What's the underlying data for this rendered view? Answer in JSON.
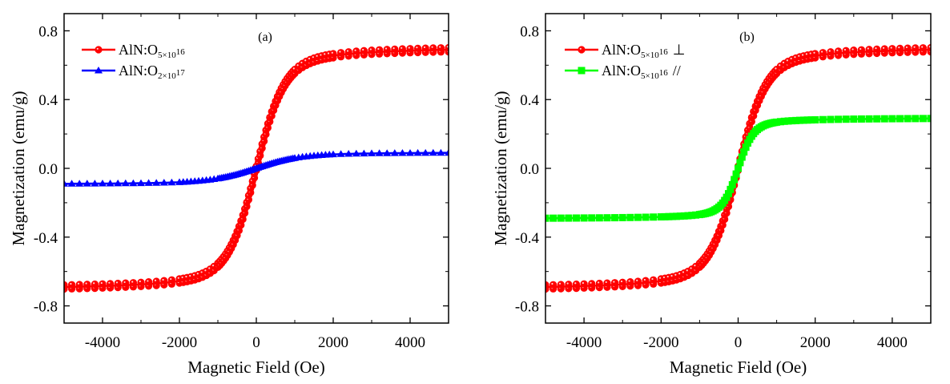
{
  "chart_data": [
    {
      "type": "line",
      "panel_label": "(a)",
      "xlabel": "Magnetic Field (Oe)",
      "ylabel": "Magnetization (emu/g)",
      "xlim": [
        -5000,
        5000
      ],
      "ylim": [
        -0.9,
        0.9
      ],
      "xticks": [
        -4000,
        -2000,
        0,
        2000,
        4000
      ],
      "xtick_labels": [
        "-4000",
        "-2000",
        "0",
        "2000",
        "4000"
      ],
      "yticks": [
        -0.8,
        -0.4,
        0.0,
        0.4,
        0.8
      ],
      "ytick_labels": [
        "-0.8",
        "-0.4",
        "0.0",
        "0.4",
        "0.8"
      ],
      "grid": false,
      "legend_position": "top-left",
      "series": [
        {
          "name": "AlN:O5×10^16",
          "legend_main": "AlN:O",
          "legend_sub": "5×10",
          "legend_sup": "16",
          "legend_suffix": "",
          "color": "#ff0000",
          "marker": "circle",
          "model": {
            "saturation": 0.69,
            "field_scale": 700
          },
          "x": [
            -5000,
            -4000,
            -3000,
            -2000,
            -1000,
            -500,
            -200,
            0,
            200,
            500,
            1000,
            2000,
            3000,
            4000,
            5000
          ],
          "y": [
            -0.68,
            -0.65,
            -0.62,
            -0.57,
            -0.45,
            -0.33,
            -0.16,
            0.0,
            0.16,
            0.33,
            0.45,
            0.57,
            0.62,
            0.65,
            0.69
          ]
        },
        {
          "name": "AlN:O2×10^17",
          "legend_main": "AlN:O",
          "legend_sub": "2×10",
          "legend_sup": "17",
          "legend_suffix": "",
          "color": "#0000ff",
          "marker": "triangle",
          "model": {
            "saturation": 0.09,
            "field_scale": 1100
          },
          "x": [
            -5000,
            -4000,
            -3000,
            -2000,
            -1000,
            -500,
            0,
            500,
            1000,
            2000,
            3000,
            4000,
            5000
          ],
          "y": [
            -0.085,
            -0.082,
            -0.077,
            -0.068,
            -0.045,
            -0.028,
            0.0,
            0.028,
            0.045,
            0.068,
            0.077,
            0.082,
            0.088
          ]
        }
      ]
    },
    {
      "type": "line",
      "panel_label": "(b)",
      "xlabel": "Magnetic Field (Oe)",
      "ylabel": "Magnetization (emu/g)",
      "xlim": [
        -5000,
        5000
      ],
      "ylim": [
        -0.9,
        0.9
      ],
      "xticks": [
        -4000,
        -2000,
        0,
        2000,
        4000
      ],
      "xtick_labels": [
        "-4000",
        "-2000",
        "0",
        "2000",
        "4000"
      ],
      "yticks": [
        -0.8,
        -0.4,
        0.0,
        0.4,
        0.8
      ],
      "ytick_labels": [
        "-0.8",
        "-0.4",
        "0.0",
        "0.4",
        "0.8"
      ],
      "grid": false,
      "legend_position": "top-left",
      "series": [
        {
          "name": "AlN:O5×10^16 ⊥",
          "legend_main": "AlN:O",
          "legend_sub": "5×10",
          "legend_sup": "16",
          "legend_suffix": "⊥",
          "color": "#ff0000",
          "marker": "circle",
          "model": {
            "saturation": 0.69,
            "field_scale": 700
          },
          "x": [
            -5000,
            -4000,
            -3000,
            -2000,
            -1000,
            -500,
            -200,
            0,
            200,
            500,
            1000,
            2000,
            3000,
            4000,
            5000
          ],
          "y": [
            -0.68,
            -0.65,
            -0.62,
            -0.57,
            -0.45,
            -0.33,
            -0.16,
            0.0,
            0.16,
            0.33,
            0.45,
            0.57,
            0.62,
            0.65,
            0.69
          ]
        },
        {
          "name": "AlN:O5×10^16 //",
          "legend_main": "AlN:O",
          "legend_sub": "5×10",
          "legend_sup": "16",
          "legend_suffix": "//",
          "color": "#00ff00",
          "marker": "square",
          "model": {
            "saturation": 0.29,
            "field_scale": 380
          },
          "x": [
            -5000,
            -4000,
            -3000,
            -2000,
            -1000,
            -500,
            -200,
            0,
            200,
            500,
            1000,
            2000,
            3000,
            4000,
            5000
          ],
          "y": [
            -0.29,
            -0.288,
            -0.28,
            -0.265,
            -0.22,
            -0.17,
            -0.09,
            0.0,
            0.09,
            0.17,
            0.22,
            0.265,
            0.28,
            0.285,
            0.29
          ]
        }
      ]
    }
  ]
}
